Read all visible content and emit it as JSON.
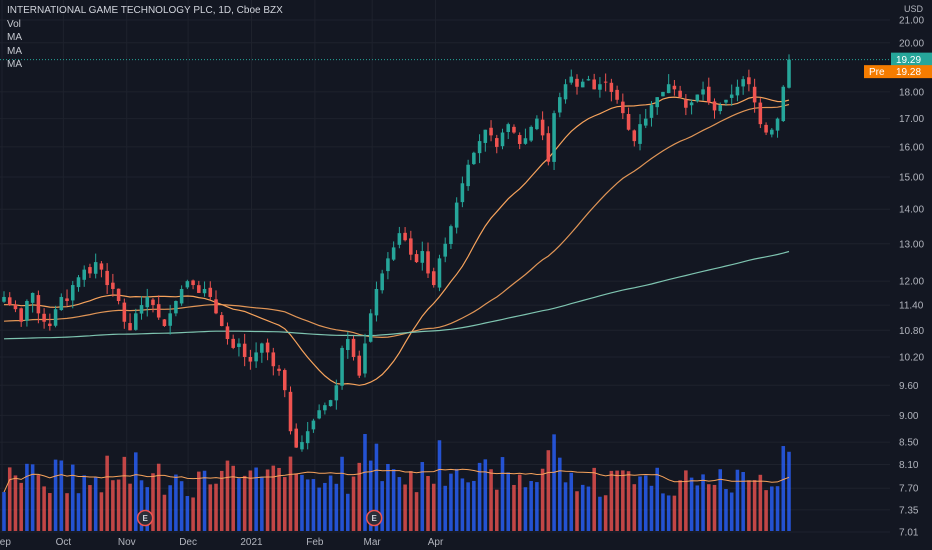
{
  "legend": {
    "title": "INTERNATIONAL GAME TECHNOLOGY PLC, 1D, Cboe BZX",
    "indicators": [
      "Vol",
      "MA",
      "MA",
      "MA"
    ]
  },
  "price_axis": {
    "currency": "USD",
    "last_price": "19.29",
    "pre_label": "Pre",
    "pre_price": "19.28"
  },
  "earnings_marker": "E",
  "colors": {
    "background": "#131722",
    "up": "#26a69a",
    "down": "#ef5350",
    "vol_up": "#2962ff",
    "vol_down": "#ef5350",
    "ma_fast": "#f7a35c",
    "ma_mid": "#f7a35c",
    "ma_slow": "#7ec4b0",
    "vol_ma": "#f7a35c",
    "last_tag": "#26a69a",
    "pre_tag": "#f57c00"
  },
  "chart_data": {
    "type": "candlestick",
    "title": "INTERNATIONAL GAME TECHNOLOGY PLC, 1D, Cboe BZX",
    "y_scale": "log",
    "ylim": [
      7.01,
      21.0
    ],
    "y_ticks": [
      "21.00",
      "20.00",
      "18.00",
      "17.00",
      "16.00",
      "15.00",
      "14.00",
      "13.00",
      "12.00",
      "11.40",
      "10.80",
      "10.20",
      "9.60",
      "9.00",
      "8.50",
      "8.10",
      "7.70",
      "7.35",
      "7.01"
    ],
    "x_ticks": [
      {
        "label": "Sep",
        "date": "2020-09-01"
      },
      {
        "label": "Oct",
        "date": "2020-10-01"
      },
      {
        "label": "Nov",
        "date": "2020-11-01"
      },
      {
        "label": "Dec",
        "date": "2020-12-01"
      },
      {
        "label": "2021",
        "date": "2021-01-01"
      },
      {
        "label": "Feb",
        "date": "2021-02-01"
      },
      {
        "label": "Mar",
        "date": "2021-03-01"
      },
      {
        "label": "Apr",
        "date": "2021-04-01"
      }
    ],
    "earnings_dates": [
      "2020-11-10",
      "2021-03-02"
    ],
    "ohlc_closes": [
      11.6,
      11.4,
      11.3,
      11.0,
      11.5,
      11.7,
      11.2,
      11.0,
      10.9,
      11.3,
      11.6,
      11.5,
      11.9,
      12.1,
      12.3,
      12.2,
      12.5,
      12.3,
      11.9,
      11.8,
      11.5,
      11.0,
      10.8,
      11.2,
      11.4,
      11.6,
      11.4,
      11.1,
      10.9,
      11.2,
      11.5,
      11.8,
      12.0,
      11.9,
      11.7,
      11.8,
      11.6,
      11.2,
      10.9,
      10.6,
      10.4,
      10.5,
      10.2,
      10.1,
      10.3,
      10.5,
      10.3,
      10.0,
      9.9,
      9.5,
      8.7,
      8.4,
      8.5,
      8.7,
      8.9,
      9.1,
      9.2,
      9.3,
      9.6,
      10.4,
      10.6,
      10.2,
      9.8,
      10.5,
      11.2,
      11.8,
      12.2,
      12.6,
      12.9,
      13.3,
      13.1,
      12.7,
      12.5,
      12.8,
      12.2,
      11.9,
      12.6,
      13.0,
      13.5,
      14.2,
      14.8,
      15.4,
      15.8,
      16.2,
      16.6,
      16.4,
      16.0,
      16.5,
      16.8,
      16.5,
      16.1,
      16.3,
      16.7,
      17.0,
      16.4,
      15.5,
      17.2,
      17.8,
      18.3,
      18.6,
      18.2,
      18.4,
      18.5,
      18.1,
      18.3,
      18.4,
      18.0,
      17.7,
      17.2,
      16.6,
      16.2,
      16.8,
      17.0,
      17.5,
      17.8,
      18.0,
      18.3,
      18.1,
      17.8,
      17.4,
      17.6,
      17.9,
      18.1,
      17.6,
      17.3,
      17.5,
      17.7,
      17.9,
      18.2,
      18.5,
      18.3,
      17.6,
      16.8,
      16.5,
      16.6,
      17.0,
      18.2,
      19.29
    ],
    "volume_unit": "relative",
    "series": [
      {
        "name": "Vol",
        "kind": "volume"
      },
      {
        "name": "MA",
        "kind": "moving-average"
      },
      {
        "name": "MA",
        "kind": "moving-average"
      },
      {
        "name": "MA",
        "kind": "moving-average"
      }
    ],
    "last_price": 19.29,
    "premarket_price": 19.28
  }
}
